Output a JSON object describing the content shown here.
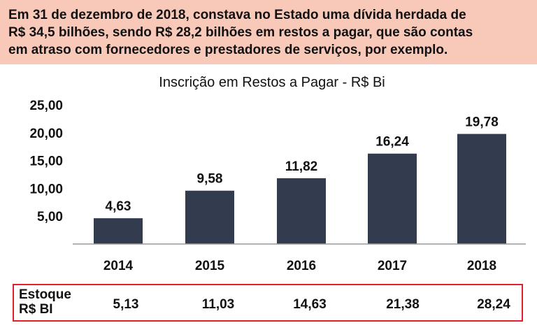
{
  "header": {
    "text_line1": "Em 31 de dezembro de 2018, constava no Estado uma dívida herdada de",
    "text_line2": "R$ 34,5 bilhões, sendo R$ 28,2 bilhões em restos a pagar, que são contas",
    "text_line3": "em atraso com fornecedores e prestadores de serviços, por exemplo."
  },
  "chart_data": {
    "type": "bar",
    "title": "Inscrição em Restos a Pagar - R$ Bi",
    "categories": [
      "2014",
      "2015",
      "2016",
      "2017",
      "2018"
    ],
    "values": [
      4.63,
      9.58,
      11.82,
      16.24,
      19.78
    ],
    "value_labels": [
      "4,63",
      "9,58",
      "11,82",
      "16,24",
      "19,78"
    ],
    "yticks": [
      "5,00",
      "10,00",
      "15,00",
      "20,00",
      "25,00"
    ],
    "ytick_values": [
      5,
      10,
      15,
      20,
      25
    ],
    "ylim": [
      0,
      25
    ],
    "xlabel": "",
    "ylabel": "",
    "grid": false,
    "bar_color": "#333c4e"
  },
  "stock": {
    "label_line1": "Estoque",
    "label_line2": "R$ BI",
    "values": [
      "5,13",
      "11,03",
      "14,63",
      "21,38",
      "28,24"
    ],
    "border_color": "#e0202a"
  }
}
